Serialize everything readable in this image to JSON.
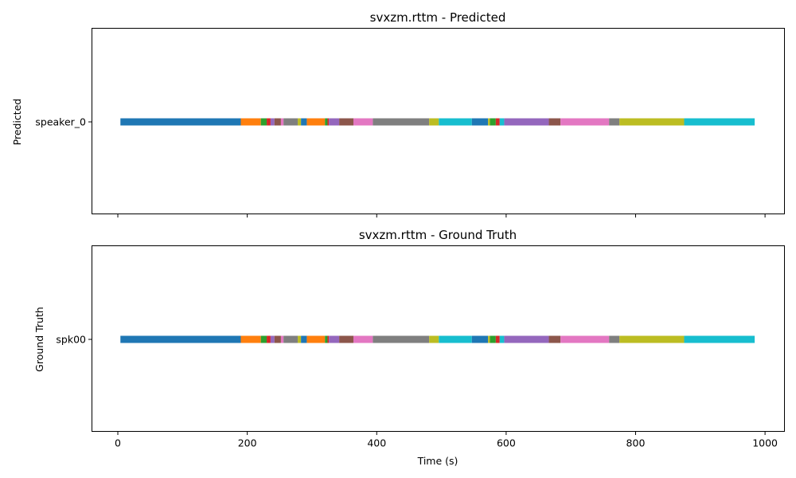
{
  "chart_data": [
    {
      "type": "timeline",
      "title": "svxzm.rttm - Predicted",
      "ylabel": "Predicted",
      "xlabel": "",
      "xlim": [
        -40,
        1030
      ],
      "xticks": [
        0,
        200,
        400,
        600,
        800,
        1000
      ],
      "show_xtick_labels": false,
      "speaker": "speaker_0",
      "segments": [
        {
          "start": 4,
          "end": 190,
          "color": "#1f77b4"
        },
        {
          "start": 190,
          "end": 221,
          "color": "#ff7f0e"
        },
        {
          "start": 221,
          "end": 230,
          "color": "#2ca02c"
        },
        {
          "start": 230,
          "end": 236,
          "color": "#d62728"
        },
        {
          "start": 236,
          "end": 242,
          "color": "#9467bd"
        },
        {
          "start": 242,
          "end": 252,
          "color": "#8c564b"
        },
        {
          "start": 252,
          "end": 256,
          "color": "#e377c2"
        },
        {
          "start": 256,
          "end": 278,
          "color": "#7f7f7f"
        },
        {
          "start": 278,
          "end": 283,
          "color": "#bcbd22"
        },
        {
          "start": 283,
          "end": 292,
          "color": "#1f77b4"
        },
        {
          "start": 292,
          "end": 320,
          "color": "#ff7f0e"
        },
        {
          "start": 320,
          "end": 324,
          "color": "#2ca02c"
        },
        {
          "start": 324,
          "end": 326,
          "color": "#d62728"
        },
        {
          "start": 326,
          "end": 342,
          "color": "#9467bd"
        },
        {
          "start": 342,
          "end": 364,
          "color": "#8c564b"
        },
        {
          "start": 364,
          "end": 394,
          "color": "#e377c2"
        },
        {
          "start": 394,
          "end": 481,
          "color": "#7f7f7f"
        },
        {
          "start": 481,
          "end": 496,
          "color": "#bcbd22"
        },
        {
          "start": 496,
          "end": 547,
          "color": "#17becf"
        },
        {
          "start": 547,
          "end": 572,
          "color": "#1f77b4"
        },
        {
          "start": 572,
          "end": 575,
          "color": "#bcbd22"
        },
        {
          "start": 575,
          "end": 584,
          "color": "#2ca02c"
        },
        {
          "start": 584,
          "end": 590,
          "color": "#d62728"
        },
        {
          "start": 590,
          "end": 597,
          "color": "#17becf"
        },
        {
          "start": 597,
          "end": 666,
          "color": "#9467bd"
        },
        {
          "start": 666,
          "end": 684,
          "color": "#8c564b"
        },
        {
          "start": 684,
          "end": 759,
          "color": "#e377c2"
        },
        {
          "start": 759,
          "end": 775,
          "color": "#7f7f7f"
        },
        {
          "start": 775,
          "end": 875,
          "color": "#bcbd22"
        },
        {
          "start": 875,
          "end": 984,
          "color": "#17becf"
        }
      ]
    },
    {
      "type": "timeline",
      "title": "svxzm.rttm - Ground Truth",
      "ylabel": "Ground Truth",
      "xlabel": "Time (s)",
      "xlim": [
        -40,
        1030
      ],
      "xticks": [
        0,
        200,
        400,
        600,
        800,
        1000
      ],
      "show_xtick_labels": true,
      "speaker": "spk00",
      "segments": [
        {
          "start": 4,
          "end": 190,
          "color": "#1f77b4"
        },
        {
          "start": 190,
          "end": 221,
          "color": "#ff7f0e"
        },
        {
          "start": 221,
          "end": 230,
          "color": "#2ca02c"
        },
        {
          "start": 230,
          "end": 236,
          "color": "#d62728"
        },
        {
          "start": 236,
          "end": 242,
          "color": "#9467bd"
        },
        {
          "start": 242,
          "end": 252,
          "color": "#8c564b"
        },
        {
          "start": 252,
          "end": 256,
          "color": "#e377c2"
        },
        {
          "start": 256,
          "end": 278,
          "color": "#7f7f7f"
        },
        {
          "start": 278,
          "end": 283,
          "color": "#bcbd22"
        },
        {
          "start": 283,
          "end": 292,
          "color": "#1f77b4"
        },
        {
          "start": 292,
          "end": 320,
          "color": "#ff7f0e"
        },
        {
          "start": 320,
          "end": 324,
          "color": "#2ca02c"
        },
        {
          "start": 324,
          "end": 326,
          "color": "#d62728"
        },
        {
          "start": 326,
          "end": 342,
          "color": "#9467bd"
        },
        {
          "start": 342,
          "end": 364,
          "color": "#8c564b"
        },
        {
          "start": 364,
          "end": 394,
          "color": "#e377c2"
        },
        {
          "start": 394,
          "end": 481,
          "color": "#7f7f7f"
        },
        {
          "start": 481,
          "end": 496,
          "color": "#bcbd22"
        },
        {
          "start": 496,
          "end": 547,
          "color": "#17becf"
        },
        {
          "start": 547,
          "end": 572,
          "color": "#1f77b4"
        },
        {
          "start": 572,
          "end": 575,
          "color": "#bcbd22"
        },
        {
          "start": 575,
          "end": 584,
          "color": "#2ca02c"
        },
        {
          "start": 584,
          "end": 590,
          "color": "#d62728"
        },
        {
          "start": 590,
          "end": 597,
          "color": "#17becf"
        },
        {
          "start": 597,
          "end": 666,
          "color": "#9467bd"
        },
        {
          "start": 666,
          "end": 684,
          "color": "#8c564b"
        },
        {
          "start": 684,
          "end": 759,
          "color": "#e377c2"
        },
        {
          "start": 759,
          "end": 775,
          "color": "#7f7f7f"
        },
        {
          "start": 775,
          "end": 875,
          "color": "#bcbd22"
        },
        {
          "start": 875,
          "end": 984,
          "color": "#17becf"
        }
      ]
    }
  ]
}
